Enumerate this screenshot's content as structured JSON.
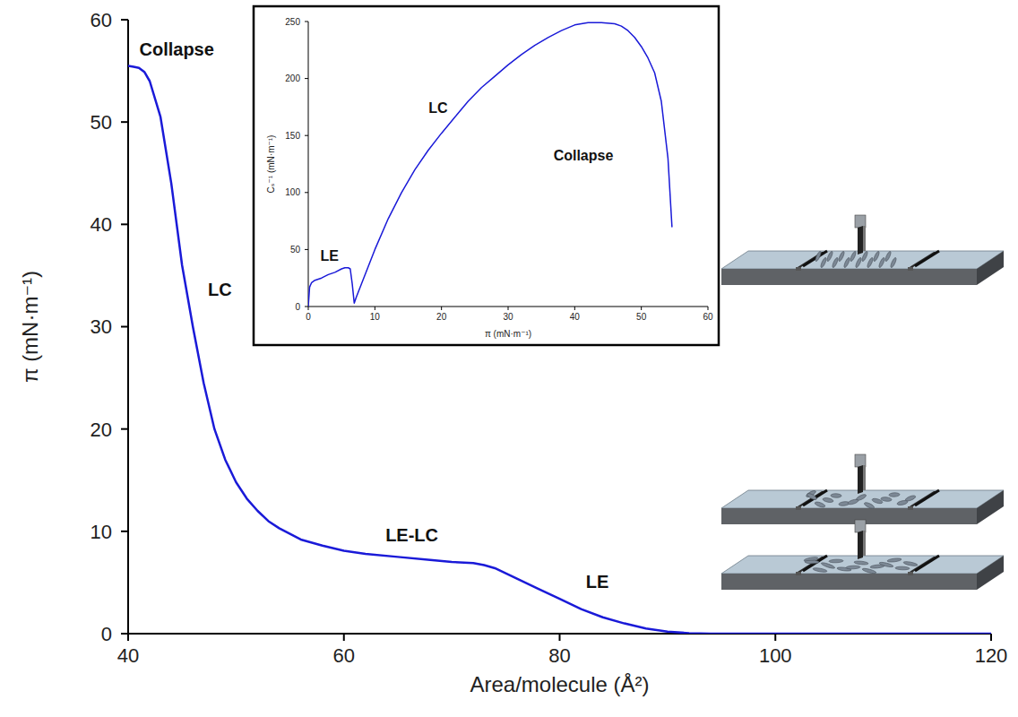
{
  "chart_data": [
    {
      "type": "line",
      "x_label": "Area/molecule (Å²)",
      "y_label": "π (mN·m⁻¹)",
      "x": [
        40,
        40.5,
        41,
        41.5,
        42,
        43,
        44,
        45,
        46,
        47,
        48,
        49,
        50,
        51,
        52,
        53,
        54,
        56,
        58,
        60,
        62,
        65,
        68,
        70,
        72,
        73,
        74,
        75,
        76,
        78,
        80,
        82,
        84,
        86,
        88,
        90,
        92,
        94,
        96,
        100,
        110,
        120
      ],
      "values": [
        55.5,
        55.4,
        55.3,
        54.9,
        54,
        50.5,
        44,
        36,
        30,
        24.5,
        20,
        17,
        14.8,
        13.2,
        12,
        11,
        10.3,
        9.2,
        8.6,
        8.1,
        7.8,
        7.5,
        7.2,
        7.0,
        6.9,
        6.7,
        6.4,
        5.9,
        5.4,
        4.4,
        3.4,
        2.4,
        1.6,
        1.0,
        0.5,
        0.2,
        0.05,
        0,
        0,
        0,
        0,
        0
      ],
      "color": "#1a1ad8",
      "xlim": [
        40,
        120
      ],
      "xticks": [
        40,
        60,
        80,
        100,
        120
      ],
      "ylim": [
        0,
        60
      ],
      "yticks": [
        0,
        10,
        20,
        30,
        40,
        50,
        60
      ],
      "grid": false,
      "annotations": [
        {
          "text": "Collapse",
          "x": 44.5,
          "y": 56.5
        },
        {
          "text": "LC",
          "x": 48.5,
          "y": 33
        },
        {
          "text": "LE-LC",
          "x": 66.3,
          "y": 9
        },
        {
          "text": "LE",
          "x": 83.5,
          "y": 4.5
        }
      ]
    },
    {
      "type": "line",
      "x_label": "π (mN·m⁻¹)",
      "y_label": "Cₛ⁻¹ (mN·m⁻¹)",
      "x": [
        0,
        0.2,
        0.5,
        1,
        2,
        3,
        4,
        5,
        5.5,
        6,
        6.3,
        6.6,
        6.9,
        7.2,
        8,
        9,
        10,
        12,
        14,
        16,
        18,
        20,
        22,
        24,
        26,
        28,
        30,
        32,
        34,
        36,
        38,
        40,
        42,
        44,
        46,
        47,
        48,
        49,
        50,
        51,
        52,
        53,
        54,
        54.6
      ],
      "values": [
        0,
        17,
        21,
        23,
        25,
        28,
        30,
        33,
        34,
        34,
        33,
        20,
        3,
        8,
        20,
        35,
        50,
        77,
        100,
        120,
        137,
        152,
        166,
        180,
        192,
        202,
        212,
        221,
        229,
        236,
        242,
        247,
        249,
        249,
        248,
        246,
        242,
        236,
        228,
        218,
        205,
        180,
        130,
        70
      ],
      "color": "#1a1ad8",
      "xlim": [
        0,
        60
      ],
      "xticks": [
        0,
        10,
        20,
        30,
        40,
        50,
        60
      ],
      "ylim": [
        0,
        250
      ],
      "yticks": [
        0,
        50,
        100,
        150,
        200,
        250
      ],
      "grid": false,
      "annotations": [
        {
          "text": "LE",
          "x": 3.2,
          "y": 40
        },
        {
          "text": "LC",
          "x": 19.5,
          "y": 170
        },
        {
          "text": "Collapse",
          "x": 41.3,
          "y": 128
        }
      ]
    }
  ]
}
